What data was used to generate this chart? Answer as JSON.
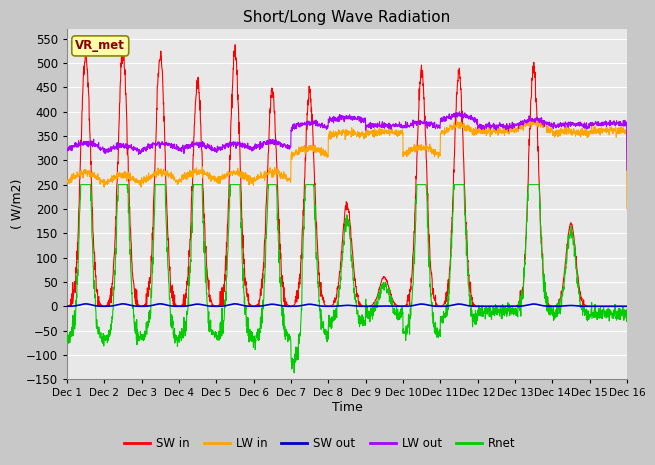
{
  "title": "Short/Long Wave Radiation",
  "xlabel": "Time",
  "ylabel": "( W/m2)",
  "ylim": [
    -150,
    570
  ],
  "yticks": [
    -150,
    -100,
    -50,
    0,
    50,
    100,
    150,
    200,
    250,
    300,
    350,
    400,
    450,
    500,
    550
  ],
  "xtick_labels": [
    "Dec 1",
    "Dec 2",
    "Dec 3",
    "Dec 4",
    "Dec 5",
    "Dec 6",
    "Dec 7",
    "Dec 8",
    "Dec 9",
    "Dec 10",
    "Dec 11",
    "Dec 12",
    "Dec 13",
    "Dec 14",
    "Dec 15",
    "Dec 16"
  ],
  "bg_color": "#e8e8e8",
  "grid_color": "#ffffff",
  "legend_labels": [
    "SW in",
    "LW in",
    "SW out",
    "LW out",
    "Rnet"
  ],
  "sw_in_color": "#ff0000",
  "lw_in_color": "#ffa500",
  "sw_out_color": "#0000cc",
  "lw_out_color": "#aa00ff",
  "rnet_color": "#00cc00",
  "station_label": "VR_met",
  "n_days": 15,
  "pts_per_day": 144,
  "fig_bg": "#c8c8c8",
  "sw_in_peaks": [
    520,
    520,
    520,
    460,
    520,
    440,
    440,
    210,
    60,
    480,
    480,
    0,
    490,
    170,
    0
  ],
  "lw_in_night": [
    245,
    240,
    245,
    250,
    245,
    250,
    300,
    345,
    355,
    300,
    345,
    360,
    350,
    350,
    360
  ],
  "lw_out_night": [
    315,
    310,
    315,
    315,
    315,
    320,
    360,
    380,
    370,
    360,
    375,
    370,
    365,
    368,
    375
  ]
}
